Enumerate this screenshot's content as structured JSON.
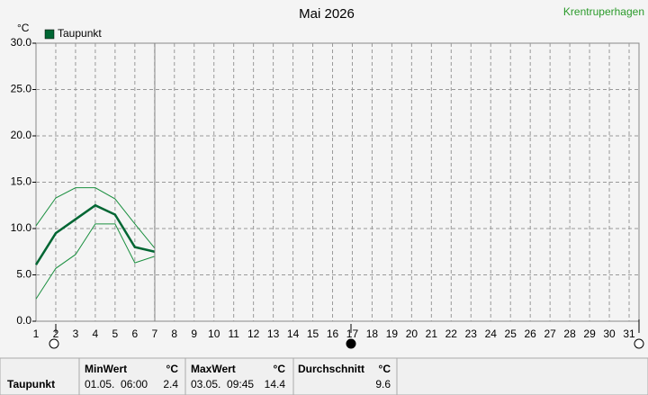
{
  "chart_data": {
    "type": "line",
    "title": "Mai 2026",
    "station": "Krentruperhagen",
    "y_unit": "°C",
    "x": [
      1,
      2,
      3,
      4,
      5,
      6,
      7,
      8,
      9,
      10,
      11,
      12,
      13,
      14,
      15,
      16,
      17,
      18,
      19,
      20,
      21,
      22,
      23,
      24,
      25,
      26,
      27,
      28,
      29,
      30,
      31
    ],
    "xlim": [
      1,
      31.5
    ],
    "xticks": [
      1,
      2,
      3,
      4,
      5,
      6,
      7,
      8,
      9,
      10,
      11,
      12,
      13,
      14,
      15,
      16,
      17,
      18,
      19,
      20,
      21,
      22,
      23,
      24,
      25,
      26,
      27,
      28,
      29,
      30,
      31
    ],
    "ylim": [
      0,
      30
    ],
    "yticks": [
      {
        "value": 0,
        "label": "0.0"
      },
      {
        "value": 5,
        "label": "5.0"
      },
      {
        "value": 10,
        "label": "10.0"
      },
      {
        "value": 15,
        "label": "15.0"
      },
      {
        "value": 20,
        "label": "20.0"
      },
      {
        "value": 25,
        "label": "25.0"
      },
      {
        "value": 30,
        "label": "30.0"
      }
    ],
    "grid": true,
    "series": [
      {
        "name": "Taupunkt",
        "color": "#006633",
        "values": [
          6.1,
          9.5,
          11.0,
          12.5,
          11.5,
          8.0,
          7.5,
          null,
          null,
          null,
          null,
          null,
          null,
          null,
          null,
          null,
          null,
          null,
          null,
          null,
          null,
          null,
          null,
          null,
          null,
          null,
          null,
          null,
          null,
          null,
          null
        ]
      }
    ],
    "band": {
      "color": "#1a8f3f",
      "upper": [
        10.3,
        13.3,
        14.4,
        14.4,
        13.2,
        10.5,
        7.9,
        null,
        null,
        null,
        null,
        null,
        null,
        null,
        null,
        null,
        null,
        null,
        null,
        null,
        null,
        null,
        null,
        null,
        null,
        null,
        null,
        null,
        null,
        null,
        null
      ],
      "lower": [
        2.4,
        5.7,
        7.2,
        10.5,
        10.5,
        6.3,
        7.0,
        null,
        null,
        null,
        null,
        null,
        null,
        null,
        null,
        null,
        null,
        null,
        null,
        null,
        null,
        null,
        null,
        null,
        null,
        null,
        null,
        null,
        null,
        null,
        null
      ]
    }
  },
  "table": {
    "row_label": "Taupunkt",
    "columns": [
      {
        "title": "MinWert",
        "unit": "°C",
        "time": "01.05.  06:00",
        "value": 2.4
      },
      {
        "title": "MaxWert",
        "unit": "°C",
        "time": "03.05.  09:45",
        "value": 14.4
      },
      {
        "title": "Durchschnitt",
        "unit": "°C",
        "value": 9.6
      }
    ]
  }
}
